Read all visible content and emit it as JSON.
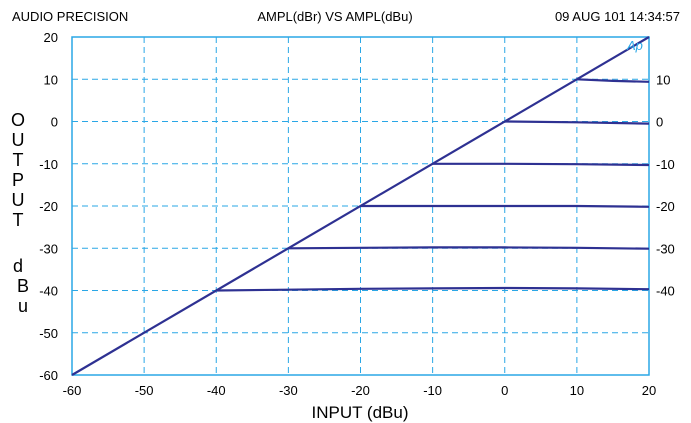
{
  "header": {
    "left": "AUDIO PRECISION",
    "center": "AMPL(dBr) VS AMPL(dBu)",
    "right": "09 AUG 101 14:34:57"
  },
  "logo_text": "Ap",
  "colors": {
    "grid": "#2aa7e6",
    "series": "#2e3192"
  },
  "chart_data": {
    "type": "line",
    "title": "AMPL(dBr) VS AMPL(dBu)",
    "xlabel": "INPUT (dBu)",
    "ylabel_letters": [
      "O",
      "U",
      "T",
      "P",
      "U",
      "T",
      "d",
      "B",
      "u"
    ],
    "xlim": [
      -60,
      20
    ],
    "ylim": [
      -60,
      20
    ],
    "x_ticks": [
      "-60",
      "-50",
      "-40",
      "-30",
      "-20",
      "-10",
      "0",
      "10",
      "20"
    ],
    "y_ticks_left": [
      "20",
      "10",
      "0",
      "-10",
      "-20",
      "-30",
      "-40",
      "-50",
      "-60"
    ],
    "y_ticks_right": [
      "10",
      "0",
      "-10",
      "-20",
      "-30",
      "-40"
    ],
    "grid": true,
    "series": [
      {
        "x": [
          -60,
          20
        ],
        "y": [
          -60,
          20
        ]
      },
      {
        "x": [
          -40,
          -30,
          -20,
          -10,
          0,
          10,
          20
        ],
        "y": [
          -40,
          -39.8,
          -39.6,
          -39.5,
          -39.4,
          -39.5,
          -39.7
        ]
      },
      {
        "x": [
          -30,
          -20,
          -10,
          0,
          10,
          20
        ],
        "y": [
          -30,
          -29.9,
          -29.8,
          -29.8,
          -29.9,
          -30.1
        ]
      },
      {
        "x": [
          -20,
          -10,
          0,
          10,
          20
        ],
        "y": [
          -20,
          -20,
          -20,
          -20,
          -20.2
        ]
      },
      {
        "x": [
          -10,
          0,
          10,
          20
        ],
        "y": [
          -10,
          -10,
          -10.1,
          -10.3
        ]
      },
      {
        "x": [
          0,
          10,
          20
        ],
        "y": [
          0,
          -0.2,
          -0.5
        ]
      },
      {
        "x": [
          10,
          15,
          20
        ],
        "y": [
          10,
          9.6,
          9.4
        ]
      }
    ]
  }
}
